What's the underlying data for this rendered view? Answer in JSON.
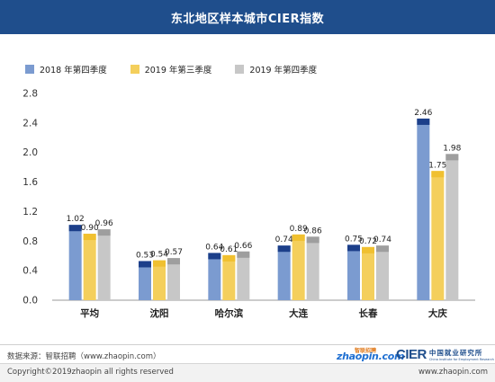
{
  "header": {
    "title": "东北地区样本城市CIER指数"
  },
  "colors": {
    "header_bg": "#1f4e8c",
    "series_2018q4": "#7b9bd0",
    "series_2018q4_cap": "#1c3f8a",
    "series_2019q3": "#f4cf5c",
    "series_2019q3_cap": "#f0c030",
    "series_2019q4": "#c7c7c7",
    "series_2019q4_cap": "#9e9e9e"
  },
  "chart_data": {
    "type": "bar",
    "title": "东北地区样本城市CIER指数",
    "categories": [
      "平均",
      "沈阳",
      "哈尔滨",
      "大连",
      "长春",
      "大庆"
    ],
    "series": [
      {
        "name": "2018 年第四季度",
        "values": [
          1.02,
          0.53,
          0.64,
          0.74,
          0.75,
          2.46
        ]
      },
      {
        "name": "2019 年第三季度",
        "values": [
          0.9,
          0.54,
          0.61,
          0.89,
          0.72,
          1.75
        ]
      },
      {
        "name": "2019 年第四季度",
        "values": [
          0.96,
          0.57,
          0.66,
          0.86,
          0.74,
          1.98
        ]
      }
    ],
    "value_labels": [
      [
        "1.02",
        "0.53",
        "0.64",
        "0.74",
        "0.75",
        "2.46"
      ],
      [
        "0.90",
        "0.54",
        "0.61",
        "0.89",
        "0.72",
        "1.75"
      ],
      [
        "0.96",
        "0.57",
        "0.66",
        "0.86",
        "0.74",
        "1.98"
      ]
    ],
    "yticks": [
      "0.0",
      "0.4",
      "0.8",
      "1.2",
      "1.6",
      "2.0",
      "2.4",
      "2.8"
    ],
    "ylim": [
      0,
      2.8
    ],
    "legend_position": "top-left",
    "grid": false
  },
  "footer": {
    "source": "数据来源：智联招聘（www.zhaopin.com）",
    "copyright": "Copyright©2019zhaopin all rights reserved",
    "website": "www.zhaopin.com",
    "logo_zhaopin_top": "智联招聘",
    "logo_zhaopin": "zhaopin.com",
    "logo_cier": "CIER",
    "logo_cier_cn": "中国就业研究所",
    "logo_cier_en": "China Institute for Employment Research"
  }
}
